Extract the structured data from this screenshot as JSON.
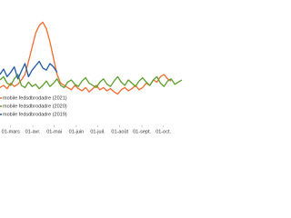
{
  "chart_data": {
    "type": "line",
    "x": [
      45,
      50,
      55,
      60,
      65,
      70,
      75,
      80,
      85,
      90,
      95,
      100,
      105,
      110,
      115,
      120,
      125,
      130,
      135,
      140,
      145,
      150,
      155,
      160,
      165,
      170,
      175,
      180,
      185,
      190,
      195,
      200,
      205,
      210,
      215,
      220,
      225,
      230,
      235,
      240,
      245,
      250,
      255,
      260,
      265,
      270,
      275,
      280,
      285,
      290,
      295,
      300
    ],
    "xlim": [
      45,
      300
    ],
    "xticks": [
      {
        "value": 60,
        "label": "01-mars"
      },
      {
        "value": 91,
        "label": "01-avr."
      },
      {
        "value": 121,
        "label": "01-mai"
      },
      {
        "value": 152,
        "label": "01-juin"
      },
      {
        "value": 182,
        "label": "01-juil."
      },
      {
        "value": 213,
        "label": "01-août"
      },
      {
        "value": 244,
        "label": "01-sept."
      },
      {
        "value": 274,
        "label": "01-oct."
      }
    ],
    "ylim": [
      0,
      100
    ],
    "series": [
      {
        "name": "mobile fedsdbrodadre (2021)",
        "color": "#f26b2e",
        "values": [
          28,
          30,
          27,
          32,
          29,
          31,
          35,
          40,
          52,
          65,
          78,
          85,
          88,
          82,
          70,
          55,
          40,
          32,
          30,
          28,
          26,
          30,
          27,
          25,
          28,
          24,
          27,
          30,
          26,
          28,
          25,
          27,
          24,
          22,
          26,
          28,
          25,
          27,
          30,
          26,
          28,
          32,
          30,
          35,
          33,
          38,
          40,
          36,
          34,
          null,
          null,
          null
        ]
      },
      {
        "name": "mobile fedsdbrodadre (2020)",
        "color": "#5a9e2a",
        "values": [
          35,
          38,
          32,
          30,
          36,
          40,
          30,
          28,
          33,
          29,
          31,
          27,
          30,
          34,
          29,
          32,
          36,
          30,
          28,
          33,
          35,
          31,
          29,
          34,
          37,
          32,
          30,
          28,
          33,
          36,
          31,
          29,
          34,
          38,
          33,
          30,
          35,
          32,
          29,
          34,
          37,
          33,
          30,
          35,
          38,
          32,
          29,
          34,
          36,
          31,
          33,
          35
        ]
      },
      {
        "name": "mobile fedsdbrodadre (2019)",
        "color": "#1f5aa6",
        "values": [
          40,
          45,
          38,
          42,
          47,
          36,
          43,
          50,
          38,
          44,
          48,
          52,
          46,
          44,
          50,
          47,
          42,
          null,
          null,
          null,
          null,
          null,
          null,
          null,
          null,
          null,
          null,
          null,
          null,
          null,
          null,
          null,
          null,
          null,
          null,
          null,
          null,
          null,
          null,
          null,
          null,
          null,
          null,
          null,
          null,
          null,
          null,
          null,
          null,
          null,
          null,
          null
        ]
      }
    ]
  }
}
